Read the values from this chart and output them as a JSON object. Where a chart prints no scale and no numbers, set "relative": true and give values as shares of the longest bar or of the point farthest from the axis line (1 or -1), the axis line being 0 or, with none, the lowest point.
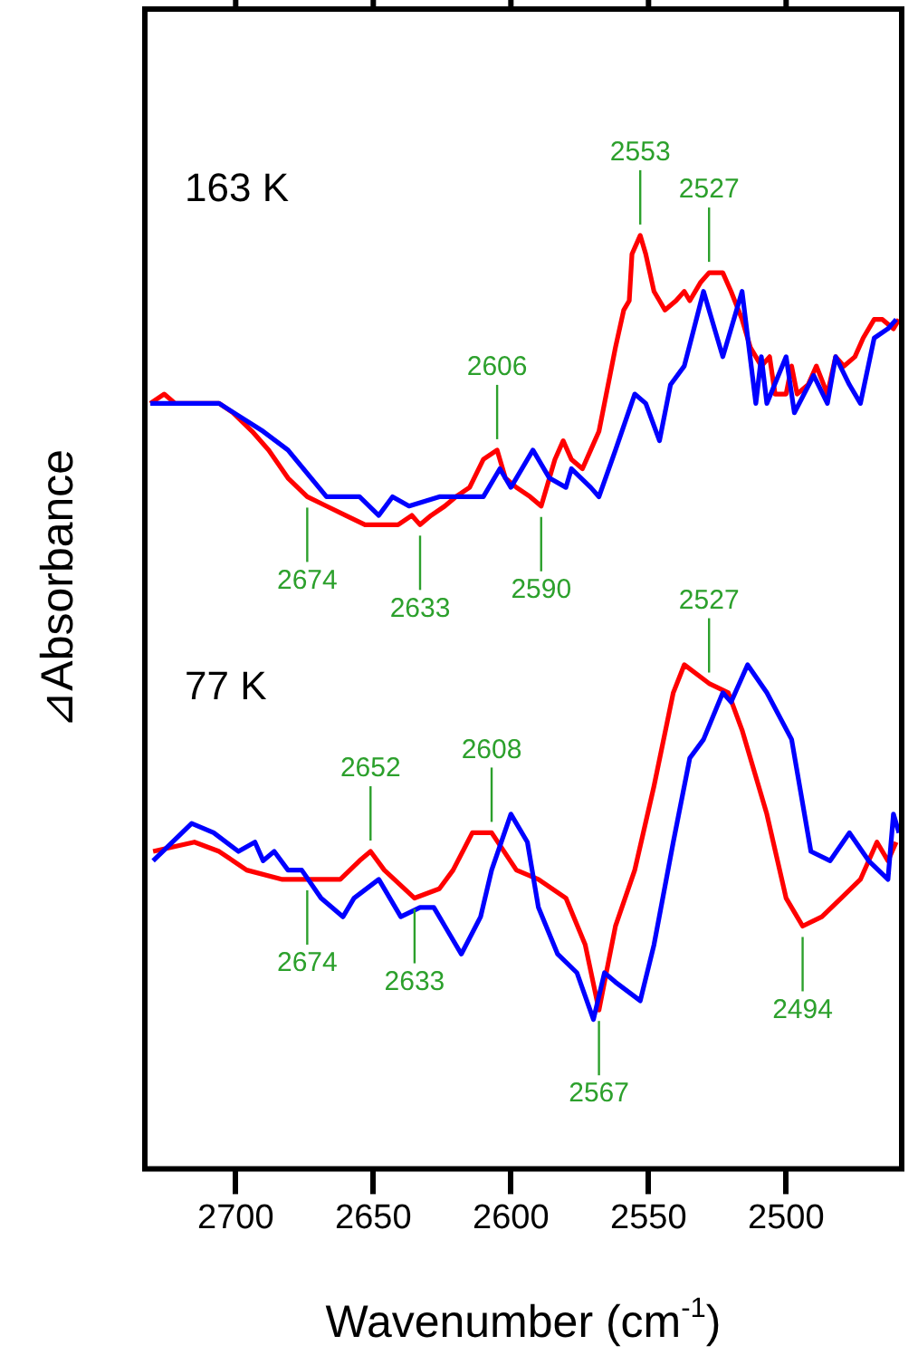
{
  "chart_data": {
    "type": "line",
    "relative": true,
    "xlabel": "Wavenumber (cm$^{-1}$)",
    "ylabel": "⊿Absorbance",
    "xlim": [
      2733,
      2458
    ],
    "xticks": [
      2700,
      2650,
      2600,
      2550,
      2500
    ],
    "annotations": [
      "163 K",
      "77 K",
      {
        "text": "2553",
        "x": 2553,
        "y": 1.0
      },
      {
        "text": "2527",
        "x": 2528,
        "y": 0.96
      },
      {
        "text": "2606",
        "x": 2605,
        "y": 0.77
      },
      {
        "text": "2674",
        "x": 2674,
        "y": 0.72
      },
      {
        "text": "2633",
        "x": 2633,
        "y": 0.69
      },
      {
        "text": "2590",
        "x": 2589,
        "y": 0.71
      },
      {
        "text": "2527",
        "x": 2528,
        "y": 0.52
      },
      {
        "text": "2652",
        "x": 2651,
        "y": 0.34
      },
      {
        "text": "2608",
        "x": 2607,
        "y": 0.36
      },
      {
        "text": "2674",
        "x": 2674,
        "y": 0.31
      },
      {
        "text": "2633",
        "x": 2635,
        "y": 0.29
      },
      {
        "text": "2567",
        "x": 2568,
        "y": 0.17
      },
      {
        "text": "2494",
        "x": 2494,
        "y": 0.26
      }
    ],
    "series": [
      {
        "color": "#0000ff",
        "x": [
          2731,
          2706,
          2690,
          2681,
          2667,
          2655,
          2648,
          2643,
          2637,
          2626,
          2614,
          2610,
          2604,
          2600,
          2592,
          2586,
          2580,
          2578,
          2571,
          2568,
          2562,
          2555,
          2551,
          2546,
          2542,
          2537,
          2530,
          2523,
          2516,
          2511,
          2509,
          2507,
          2500,
          2497,
          2490,
          2485,
          2482,
          2477,
          2473,
          2468,
          2463,
          2460
        ],
        "values": [
          0.82,
          0.82,
          0.79,
          0.77,
          0.72,
          0.72,
          0.7,
          0.72,
          0.71,
          0.72,
          0.72,
          0.72,
          0.75,
          0.73,
          0.77,
          0.74,
          0.73,
          0.75,
          0.73,
          0.72,
          0.77,
          0.83,
          0.82,
          0.78,
          0.84,
          0.86,
          0.94,
          0.87,
          0.94,
          0.82,
          0.87,
          0.82,
          0.87,
          0.81,
          0.85,
          0.82,
          0.87,
          0.84,
          0.82,
          0.89,
          0.9,
          0.91
        ]
      },
      {
        "color": "#ff0000",
        "x": [
          2731,
          2726,
          2722,
          2716,
          2711,
          2706,
          2701,
          2694,
          2688,
          2681,
          2674,
          2667,
          2660,
          2653,
          2646,
          2641,
          2636,
          2633,
          2629,
          2624,
          2620,
          2615,
          2610,
          2605,
          2602,
          2598,
          2593,
          2589,
          2584,
          2581,
          2578,
          2574,
          2571,
          2568,
          2564,
          2562,
          2559,
          2557,
          2556,
          2553,
          2551,
          2548,
          2546,
          2544,
          2540,
          2537,
          2535,
          2531,
          2528,
          2523,
          2520,
          2516,
          2513,
          2509,
          2506,
          2504,
          2500,
          2498,
          2496,
          2492,
          2489,
          2485,
          2482,
          2479,
          2475,
          2472,
          2468,
          2465,
          2461,
          2459
        ],
        "values": [
          0.82,
          0.83,
          0.82,
          0.82,
          0.82,
          0.82,
          0.81,
          0.79,
          0.77,
          0.74,
          0.72,
          0.71,
          0.7,
          0.69,
          0.69,
          0.69,
          0.7,
          0.69,
          0.7,
          0.71,
          0.72,
          0.73,
          0.76,
          0.77,
          0.74,
          0.73,
          0.72,
          0.71,
          0.76,
          0.78,
          0.76,
          0.75,
          0.77,
          0.79,
          0.85,
          0.88,
          0.92,
          0.93,
          0.98,
          1.0,
          0.98,
          0.94,
          0.93,
          0.92,
          0.93,
          0.94,
          0.93,
          0.95,
          0.96,
          0.96,
          0.94,
          0.91,
          0.88,
          0.86,
          0.87,
          0.83,
          0.83,
          0.86,
          0.83,
          0.84,
          0.86,
          0.83,
          0.87,
          0.86,
          0.87,
          0.89,
          0.91,
          0.91,
          0.9,
          0.91
        ]
      },
      {
        "color": "#0000ff",
        "x": [
          2730,
          2716,
          2708,
          2699,
          2693,
          2690,
          2686,
          2681,
          2676,
          2669,
          2661,
          2657,
          2648,
          2640,
          2633,
          2628,
          2624,
          2618,
          2611,
          2607,
          2600,
          2594,
          2590,
          2583,
          2576,
          2570,
          2566,
          2562,
          2553,
          2548,
          2541,
          2535,
          2530,
          2523,
          2520,
          2514,
          2507,
          2498,
          2491,
          2484,
          2477,
          2470,
          2463,
          2461,
          2459
        ],
        "values": [
          0.33,
          0.37,
          0.36,
          0.34,
          0.35,
          0.33,
          0.34,
          0.32,
          0.32,
          0.29,
          0.27,
          0.29,
          0.31,
          0.27,
          0.28,
          0.28,
          0.26,
          0.23,
          0.27,
          0.32,
          0.38,
          0.35,
          0.28,
          0.23,
          0.21,
          0.16,
          0.21,
          0.2,
          0.18,
          0.24,
          0.35,
          0.44,
          0.46,
          0.51,
          0.5,
          0.54,
          0.51,
          0.46,
          0.34,
          0.33,
          0.36,
          0.33,
          0.31,
          0.38,
          0.36
        ]
      },
      {
        "color": "#ff0000",
        "x": [
          2730,
          2715,
          2706,
          2696,
          2683,
          2674,
          2662,
          2655,
          2651,
          2646,
          2635,
          2626,
          2621,
          2614,
          2607,
          2598,
          2590,
          2580,
          2573,
          2568,
          2562,
          2555,
          2548,
          2541,
          2537,
          2528,
          2521,
          2516,
          2507,
          2500,
          2494,
          2487,
          2480,
          2473,
          2467,
          2463,
          2460
        ],
        "values": [
          0.34,
          0.35,
          0.34,
          0.32,
          0.31,
          0.31,
          0.31,
          0.33,
          0.34,
          0.32,
          0.29,
          0.3,
          0.32,
          0.36,
          0.36,
          0.32,
          0.31,
          0.29,
          0.24,
          0.17,
          0.26,
          0.32,
          0.41,
          0.51,
          0.54,
          0.52,
          0.51,
          0.47,
          0.38,
          0.29,
          0.26,
          0.27,
          0.29,
          0.31,
          0.35,
          0.33,
          0.35
        ]
      }
    ]
  }
}
